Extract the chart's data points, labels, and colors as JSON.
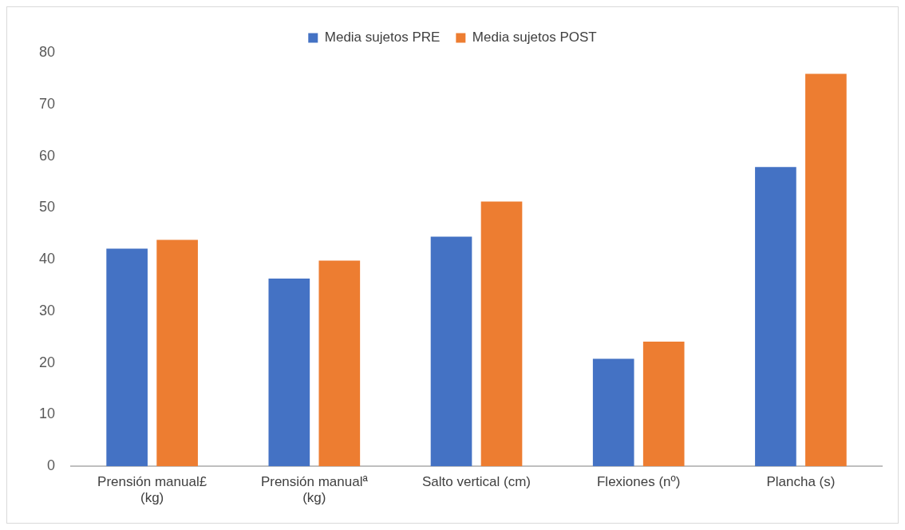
{
  "chart_data": {
    "type": "bar",
    "categories": [
      "Prensión manual£ (kg)",
      "Prensión manualª (kg)",
      "Salto vertical (cm)",
      "Flexiones (nº)",
      "Plancha (s)"
    ],
    "series": [
      {
        "name": "Media sujetos PRE",
        "color": "#4472c4",
        "values": [
          42.1,
          36.3,
          44.4,
          20.8,
          57.9
        ]
      },
      {
        "name": "Media sujetos POST",
        "color": "#ed7d31",
        "values": [
          43.8,
          39.8,
          51.2,
          24.1,
          75.9
        ]
      }
    ],
    "ylim": [
      0,
      80
    ],
    "yticks": [
      0,
      10,
      20,
      30,
      40,
      50,
      60,
      70,
      80
    ],
    "grid": false,
    "legend": "top"
  }
}
